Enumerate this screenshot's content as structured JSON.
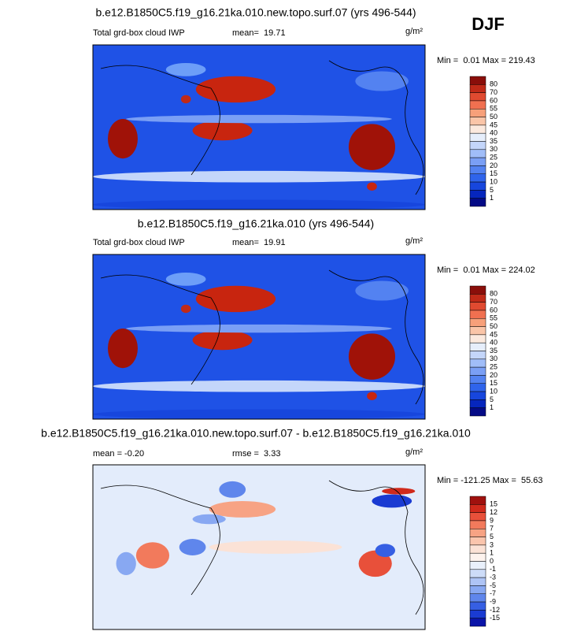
{
  "figure_label": "DJF",
  "panels": [
    {
      "title": "b.e12.B1850C5.f19_g16.21ka.010.new.topo.surf.07 (yrs 496-544)",
      "variable": "Total grd-box cloud IWP",
      "mean": "mean=  19.71",
      "units": "g/m²",
      "minmax": "Min =  0.01 Max = 219.43",
      "colorbar": {
        "labels": [
          "80",
          "70",
          "60",
          "55",
          "50",
          "45",
          "40",
          "35",
          "30",
          "25",
          "20",
          "15",
          "10",
          "5",
          "1"
        ],
        "colors": [
          "#8a0e0a",
          "#c02a18",
          "#e04a30",
          "#f07050",
          "#f7a07a",
          "#fac5a8",
          "#fbe9de",
          "#e6eefb",
          "#c4d6fa",
          "#a0bdf8",
          "#7a9ff5",
          "#5382f1",
          "#2f64eb",
          "#1746dd",
          "#0626bd",
          "#040b86"
        ]
      }
    },
    {
      "title": "b.e12.B1850C5.f19_g16.21ka.010 (yrs 496-544)",
      "variable": "Total grd-box cloud IWP",
      "mean": "mean=  19.91",
      "units": "g/m²",
      "minmax": "Min =  0.01 Max = 224.02",
      "colorbar": {
        "labels": [
          "80",
          "70",
          "60",
          "55",
          "50",
          "45",
          "40",
          "35",
          "30",
          "25",
          "20",
          "15",
          "10",
          "5",
          "1"
        ],
        "colors": [
          "#8a0e0a",
          "#c02a18",
          "#e04a30",
          "#f07050",
          "#f7a07a",
          "#fac5a8",
          "#fbe9de",
          "#e6eefb",
          "#c4d6fa",
          "#a0bdf8",
          "#7a9ff5",
          "#5382f1",
          "#2f64eb",
          "#1746dd",
          "#0626bd",
          "#040b86"
        ]
      }
    },
    {
      "title": "b.e12.B1850C5.f19_g16.21ka.010.new.topo.surf.07 - b.e12.B1850C5.f19_g16.21ka.010",
      "mean": "mean = -0.20",
      "rmse": "rmse =  3.33",
      "units": "g/m²",
      "minmax": "Min = -121.25 Max =  55.63",
      "colorbar": {
        "labels": [
          "15",
          "12",
          "9",
          "7",
          "5",
          "3",
          "1",
          "0",
          "-1",
          "-3",
          "-5",
          "-7",
          "-9",
          "-12",
          "-15"
        ],
        "colors": [
          "#a0110e",
          "#d02a1c",
          "#e8503a",
          "#f27a5c",
          "#f7a384",
          "#fac5ad",
          "#fbe2d6",
          "#fdf3ee",
          "#e9f0fb",
          "#cddcf8",
          "#aec4f5",
          "#88a8f2",
          "#5f86ec",
          "#365fe3",
          "#1a3bd2",
          "#0a14a8"
        ]
      }
    }
  ]
}
